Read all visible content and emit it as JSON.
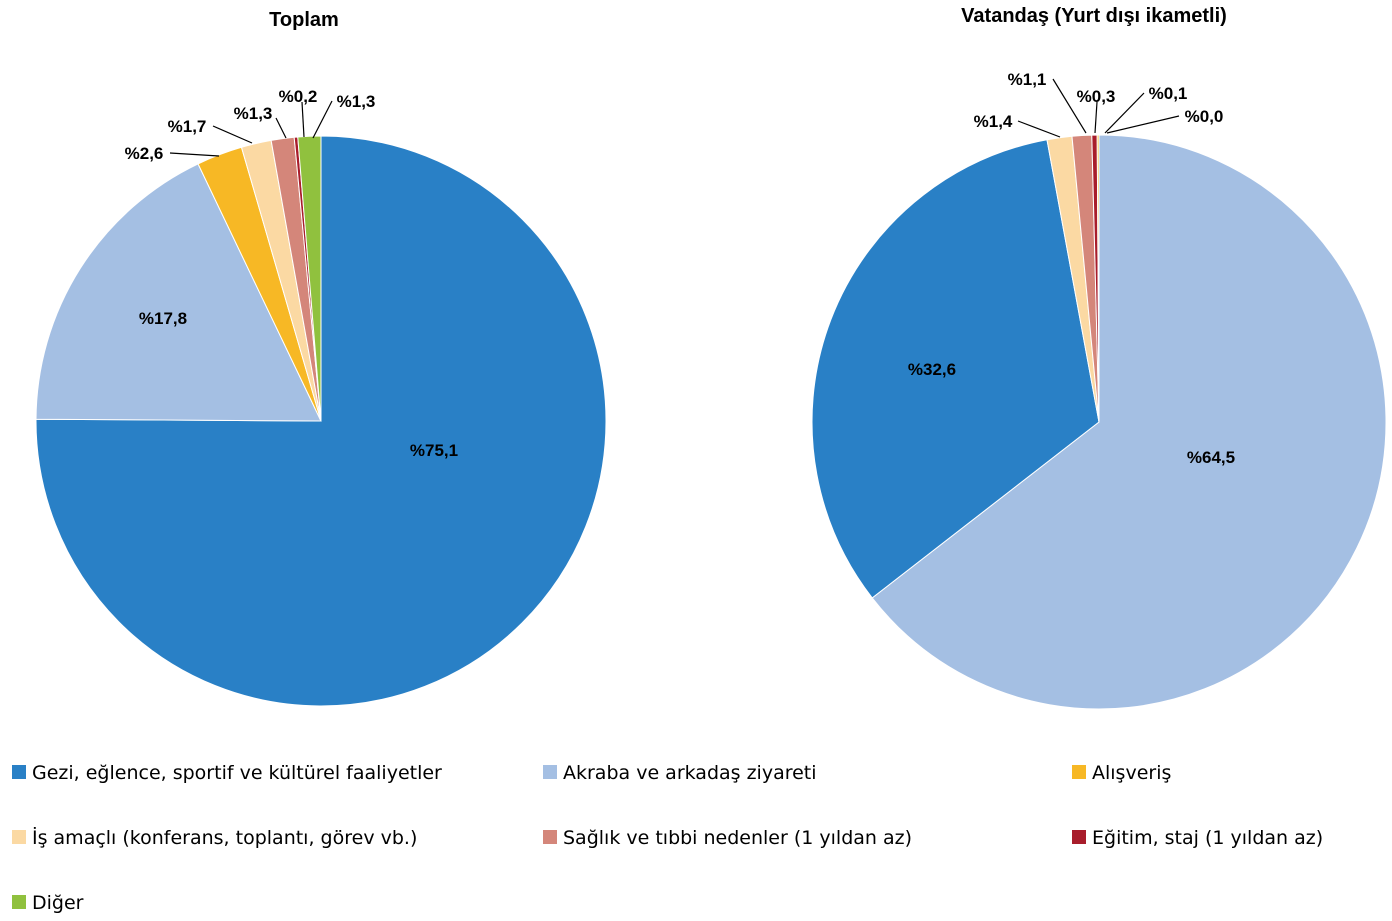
{
  "chart_data": [
    {
      "type": "pie",
      "title": "Toplam",
      "slices": [
        {
          "category": "Gezi, eğlence, sportif ve kültürel faaliyetler",
          "value": 75.1,
          "label": "%75,1"
        },
        {
          "category": "Akraba ve arkadaş ziyareti",
          "value": 17.8,
          "label": "%17,8"
        },
        {
          "category": "Alışveriş",
          "value": 2.6,
          "label": "%2,6"
        },
        {
          "category": "İş amaçlı (konferans, toplantı, görev vb.)",
          "value": 1.7,
          "label": "%1,7"
        },
        {
          "category": "Sağlık ve tıbbi nedenler (1 yıldan az)",
          "value": 1.3,
          "label": "%1,3"
        },
        {
          "category": "Eğitim, staj (1 yıldan az)",
          "value": 0.2,
          "label": "%0,2"
        },
        {
          "category": "Diğer",
          "value": 1.3,
          "label": "%1,3"
        }
      ]
    },
    {
      "type": "pie",
      "title": "Vatandaş (Yurt dışı ikametli)",
      "slices": [
        {
          "category": "Gezi, eğlence, sportif ve kültürel faaliyetler",
          "value": 32.6,
          "label": "%32,6"
        },
        {
          "category": "Akraba ve arkadaş ziyareti",
          "value": 64.5,
          "label": "%64,5"
        },
        {
          "category": "Alışveriş",
          "value": 0.1,
          "label": "%0,1"
        },
        {
          "category": "İş amaçlı (konferans, toplantı, görev vb.)",
          "value": 1.4,
          "label": "%1,4"
        },
        {
          "category": "Sağlık ve tıbbi nedenler (1 yıldan az)",
          "value": 1.1,
          "label": "%1,1"
        },
        {
          "category": "Eğitim, staj (1 yıldan az)",
          "value": 0.3,
          "label": "%0,3"
        },
        {
          "category": "Diğer",
          "value": 0.0,
          "label": "%0,0"
        }
      ]
    }
  ],
  "legend": {
    "placement": "bottom",
    "items": [
      {
        "name": "Gezi, eğlence, sportif ve kültürel faaliyetler",
        "color": "#2980c6"
      },
      {
        "name": "Akraba ve arkadaş ziyareti",
        "color": "#a4bfe3"
      },
      {
        "name": "Alışveriş",
        "color": "#f7b825"
      },
      {
        "name": "İş amaçlı (konferans, toplantı, görev vb.)",
        "color": "#fbd9a3"
      },
      {
        "name": "Sağlık ve tıbbi nedenler (1 yıldan az)",
        "color": "#d4867a"
      },
      {
        "name": "Eğitim, staj (1 yıldan az)",
        "color": "#a81d2b"
      },
      {
        "name": "Diğer",
        "color": "#90c13e"
      }
    ]
  }
}
